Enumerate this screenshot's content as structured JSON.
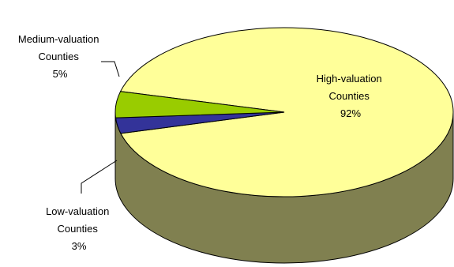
{
  "chart_data": {
    "type": "pie",
    "three_d": true,
    "title": "",
    "slices": [
      {
        "name_lines": [
          "High-valuation",
          "Counties"
        ],
        "value": 92,
        "pct_label": "92%",
        "top_color": "#ffff99",
        "side_color": "#808050"
      },
      {
        "name_lines": [
          "Low-valuation",
          "Counties"
        ],
        "value": 3,
        "pct_label": "3%",
        "top_color": "#333399",
        "side_color": "#1a1a66"
      },
      {
        "name_lines": [
          "Medium-valuation",
          "Counties"
        ],
        "value": 5,
        "pct_label": "5%",
        "top_color": "#99cc00",
        "side_color": "#5c7a00"
      }
    ]
  }
}
